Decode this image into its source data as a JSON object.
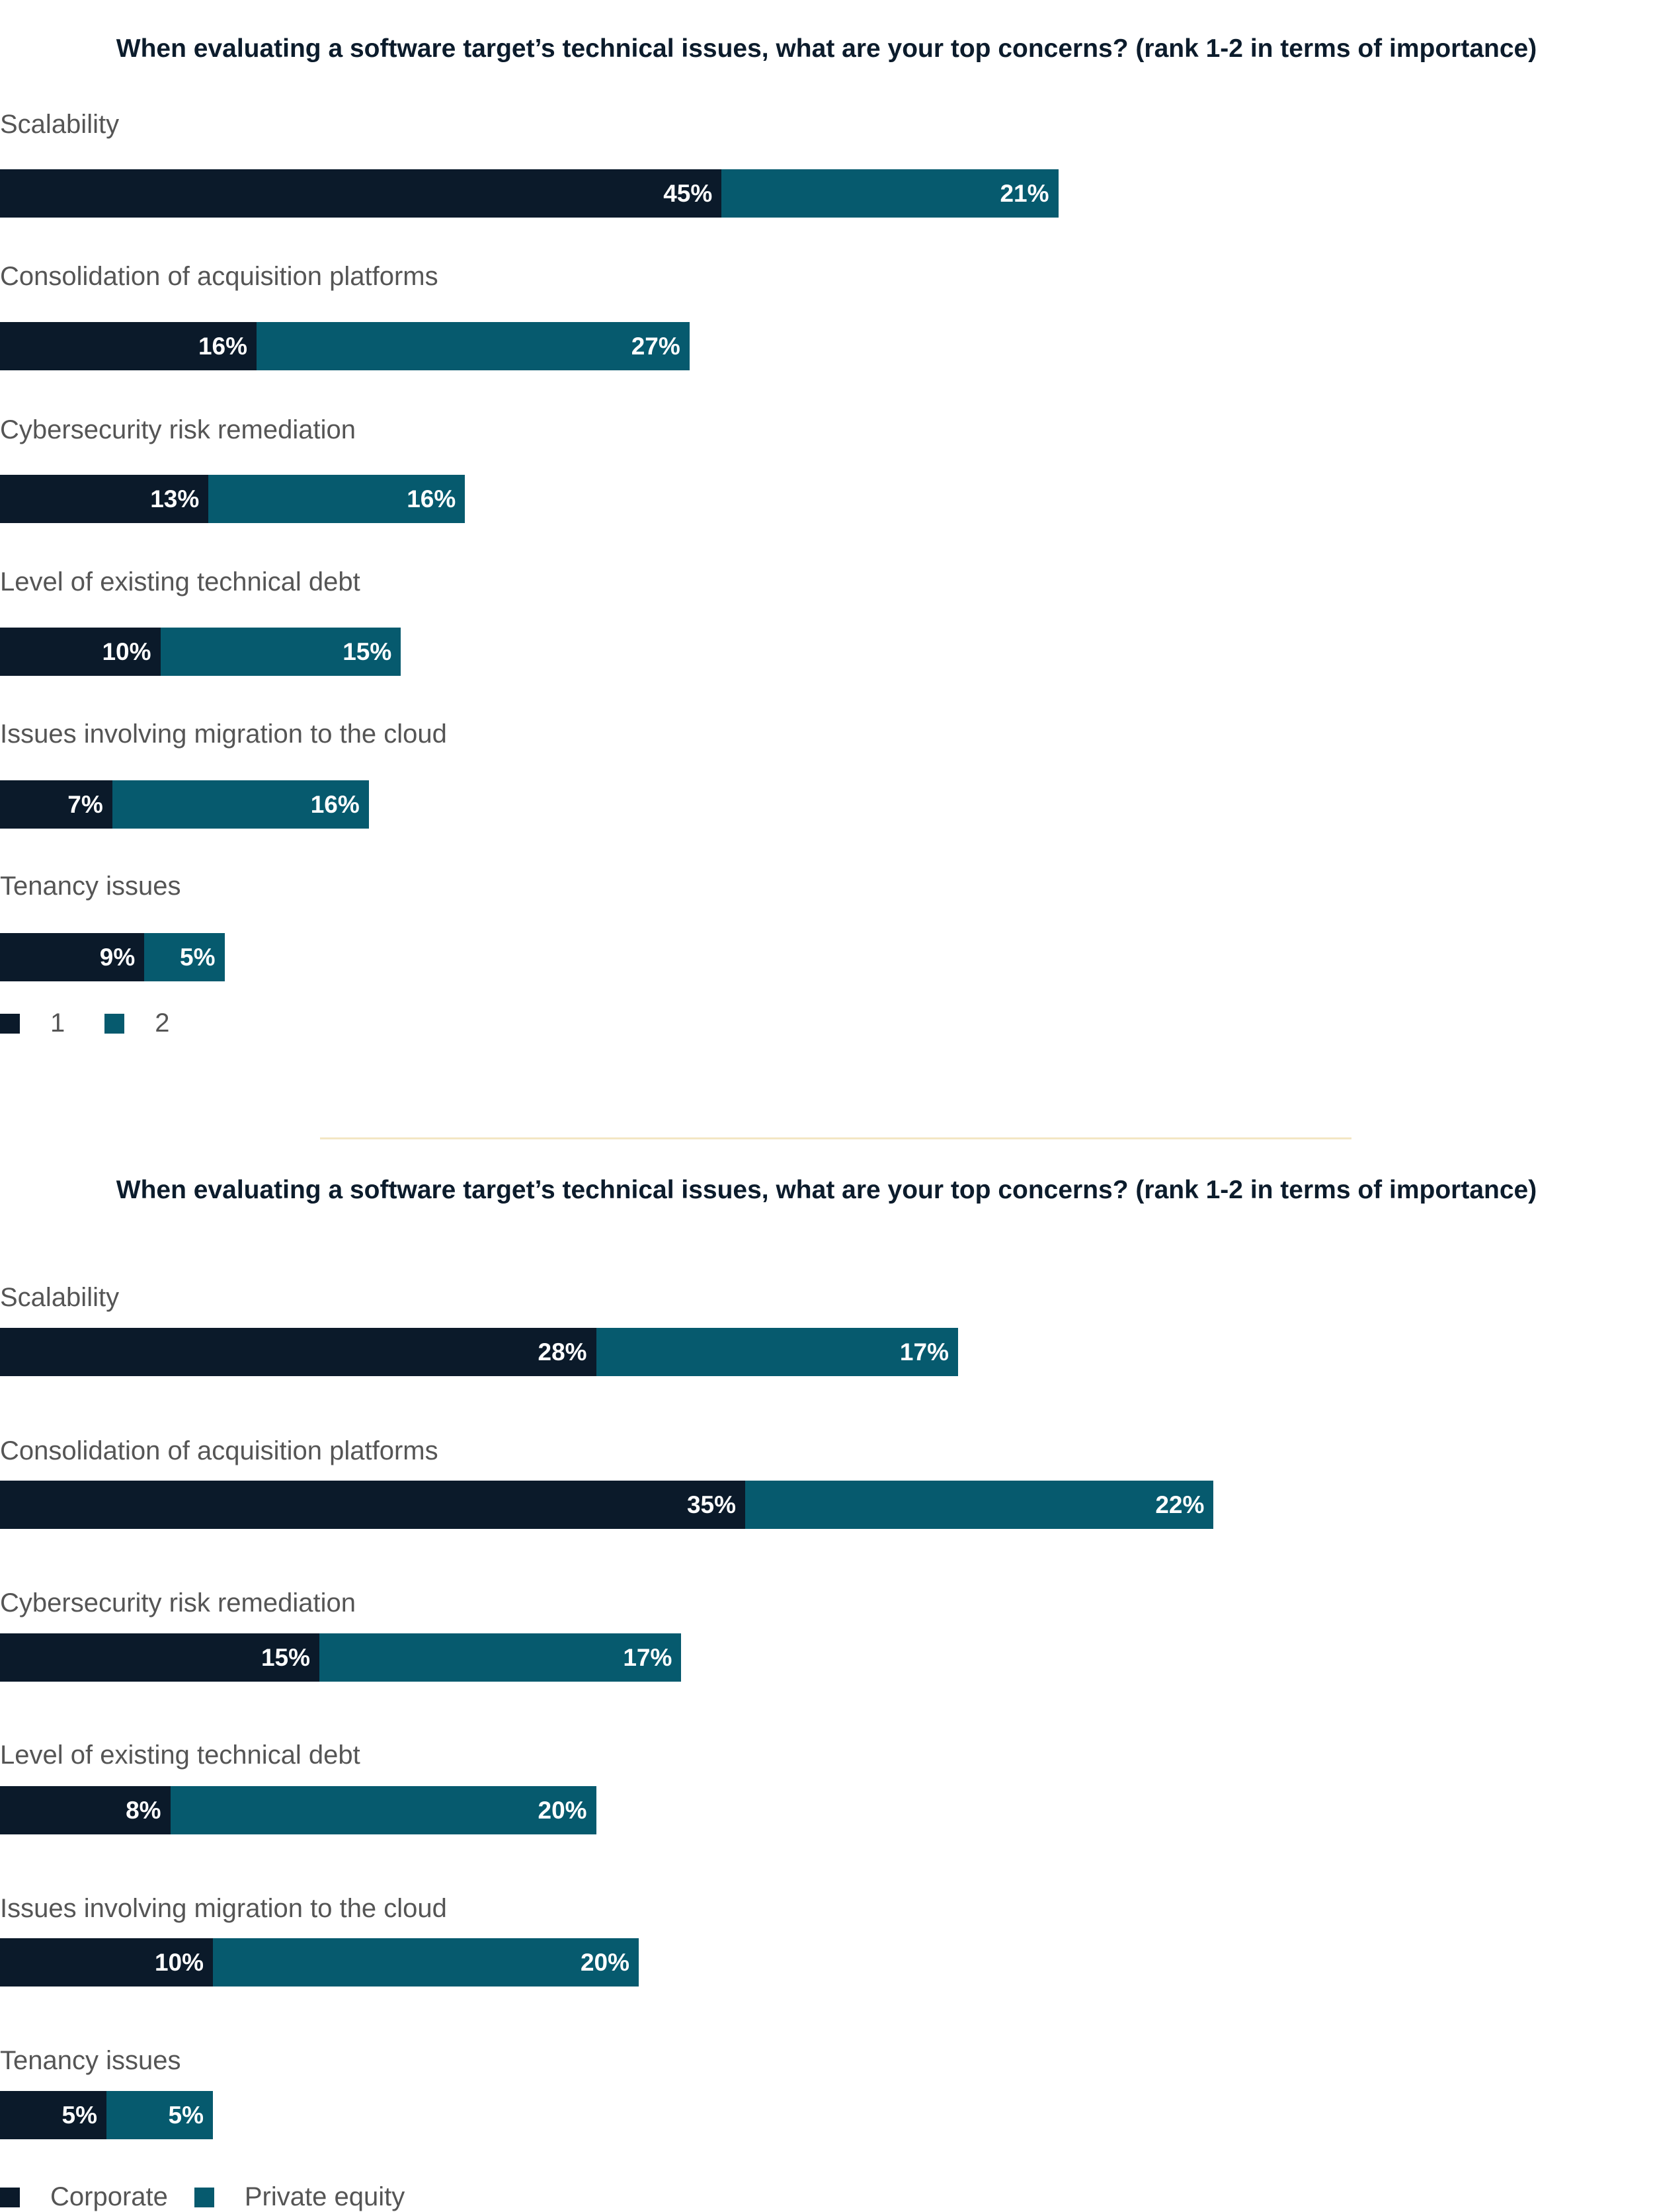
{
  "colors": {
    "series_1": "#0b1a2a",
    "series_2": "#065a6e",
    "divider": "#f3e6c4"
  },
  "chart_data": [
    {
      "type": "bar",
      "orientation": "horizontal",
      "stacked": true,
      "title": "When evaluating a software target’s technical issues, what are your top concerns? (rank 1-2 in terms of importance)",
      "categories": [
        "Scalability",
        "Consolidation of acquisition platforms",
        "Cybersecurity risk remediation",
        "Level of existing technical debt",
        "Issues involving migration to the cloud",
        "Tenancy issues"
      ],
      "series": [
        {
          "name": "1",
          "values": [
            45,
            16,
            13,
            10,
            7,
            9
          ],
          "labels": [
            "45%",
            "16%",
            "13%",
            "10%",
            "7%",
            "9%"
          ]
        },
        {
          "name": "2",
          "values": [
            21,
            27,
            16,
            15,
            16,
            5
          ],
          "labels": [
            "21%",
            "27%",
            "16%",
            "15%",
            "16%",
            "5%"
          ]
        }
      ],
      "legend": [
        "1",
        "2"
      ]
    },
    {
      "type": "bar",
      "orientation": "horizontal",
      "stacked": true,
      "title": "When evaluating a software target’s technical issues, what are your top concerns? (rank 1-2 in terms of importance)",
      "categories": [
        "Scalability",
        "Consolidation of acquisition platforms",
        "Cybersecurity risk remediation",
        "Level of existing technical debt",
        "Issues involving migration to the cloud",
        "Tenancy issues"
      ],
      "series": [
        {
          "name": "Corporate",
          "values": [
            28,
            35,
            15,
            8,
            10,
            5
          ],
          "labels": [
            "28%",
            "35%",
            "15%",
            "8%",
            "10%",
            "5%"
          ]
        },
        {
          "name": "Private equity",
          "values": [
            17,
            22,
            17,
            20,
            20,
            5
          ],
          "labels": [
            "17%",
            "22%",
            "17%",
            "20%",
            "20%",
            "5%"
          ]
        }
      ],
      "legend": [
        "Corporate",
        "Private equity"
      ]
    }
  ]
}
